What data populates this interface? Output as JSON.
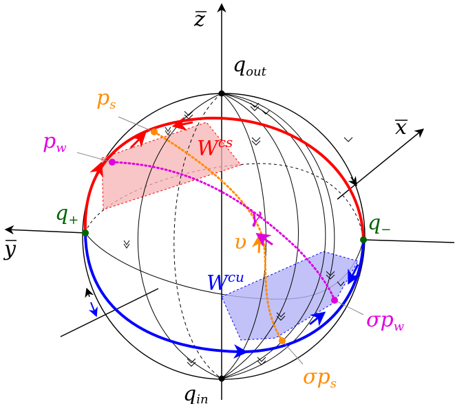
{
  "colors": {
    "unstable_curve": "#ff0000",
    "stable_curve": "#0000ff",
    "orbit_v": "#ff8c00",
    "orbit_gamma": "#e000e0",
    "equilibria": "#006400",
    "wcs_fill": "#f6b3b3",
    "wcu_fill": "#b3b3f6"
  },
  "labels": {
    "z_axis": {
      "base": "z",
      "note": "with overbar"
    },
    "x_axis": {
      "base": "x",
      "note": "with overbar"
    },
    "y_axis": {
      "base": "y",
      "note": "with overbar"
    },
    "q_out": {
      "base": "q",
      "sub": "out"
    },
    "q_in": {
      "base": "q",
      "sub": "in"
    },
    "q_plus": {
      "base": "q",
      "sub": "+"
    },
    "q_minus": {
      "base": "q",
      "sub": "−"
    },
    "p_s": {
      "base": "p",
      "sub": "s"
    },
    "p_w": {
      "base": "p",
      "sub": "w"
    },
    "sigma_p_w": {
      "base": "σp",
      "sub": "w"
    },
    "sigma_p_s": {
      "base": "σp",
      "sub": "s"
    },
    "W_cs": {
      "base": "W",
      "sup": "cs"
    },
    "W_cu": {
      "base": "W",
      "sup": "cu"
    },
    "gamma": "γ",
    "upsilon": "υ"
  }
}
